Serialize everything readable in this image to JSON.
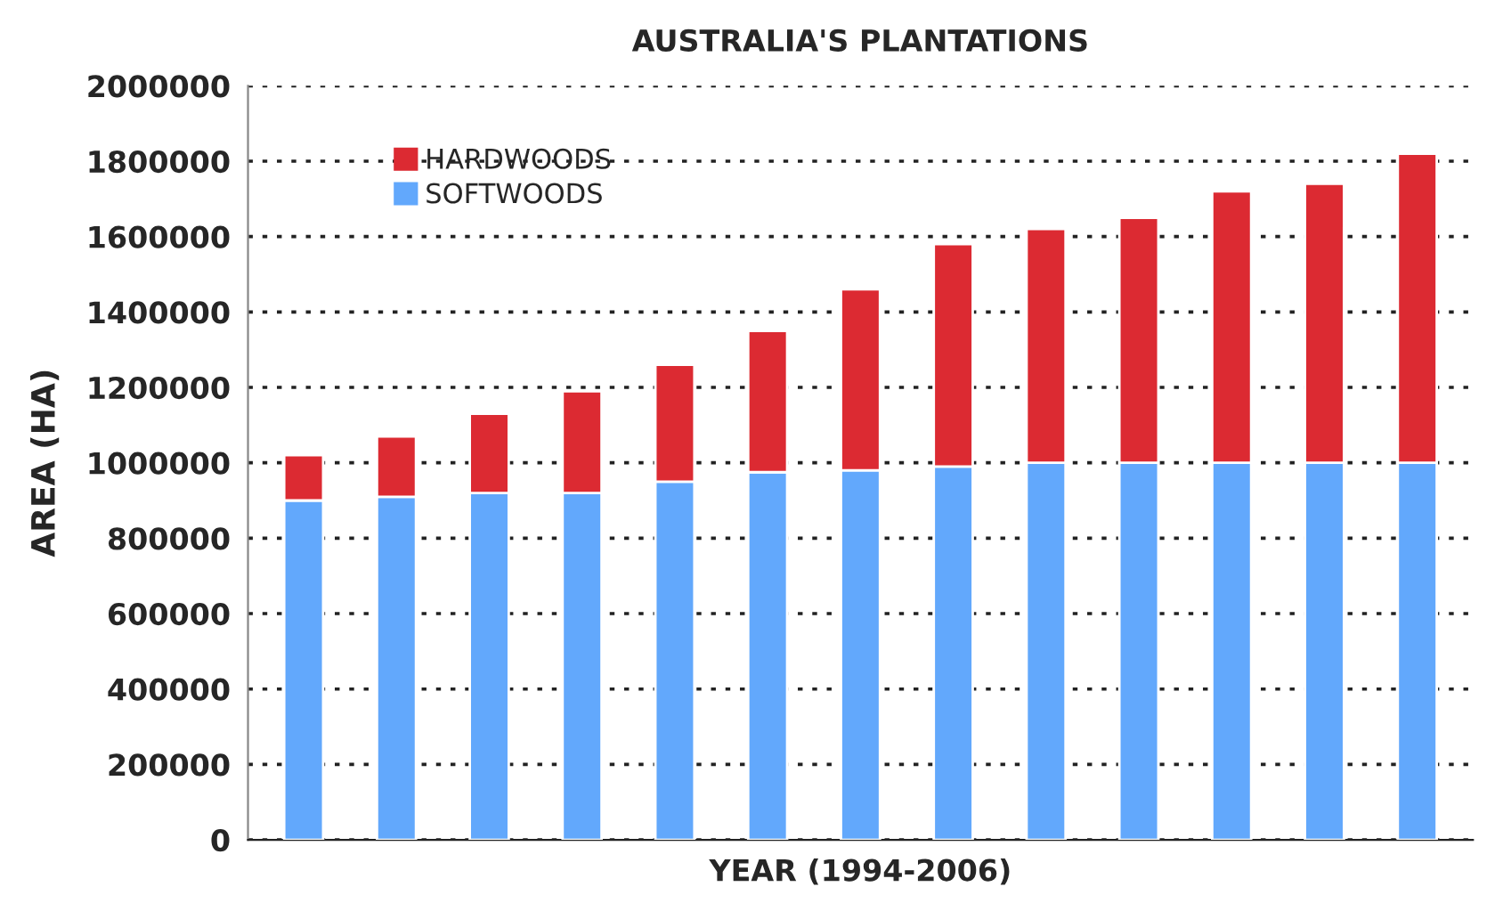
{
  "chart_data": {
    "type": "bar",
    "title": "AUSTRALIA'S PLANTATIONS",
    "xlabel": "YEAR (1994-2006)",
    "ylabel": "AREA (HA)",
    "categories": [
      null,
      null,
      null,
      null,
      null,
      null,
      null,
      null,
      null,
      null,
      null,
      null,
      null
    ],
    "stacked": true,
    "series": [
      {
        "name": "SOFTWOODS",
        "color": "#62a8fc",
        "values": [
          900000,
          910000,
          920000,
          920000,
          950000,
          975000,
          980000,
          990000,
          1000000,
          1000000,
          1000000,
          1000000,
          1000000
        ]
      },
      {
        "name": "HARDWOODS",
        "color": "#dc2a32",
        "values": [
          120000,
          160000,
          210000,
          270000,
          310000,
          375000,
          480000,
          590000,
          620000,
          650000,
          720000,
          740000,
          820000
        ]
      }
    ],
    "ylim": [
      0,
      2000000
    ],
    "yticks": [
      0,
      200000,
      400000,
      600000,
      800000,
      1000000,
      1200000,
      1400000,
      1600000,
      1800000,
      2000000
    ],
    "grid": "y",
    "legend": "top left"
  }
}
